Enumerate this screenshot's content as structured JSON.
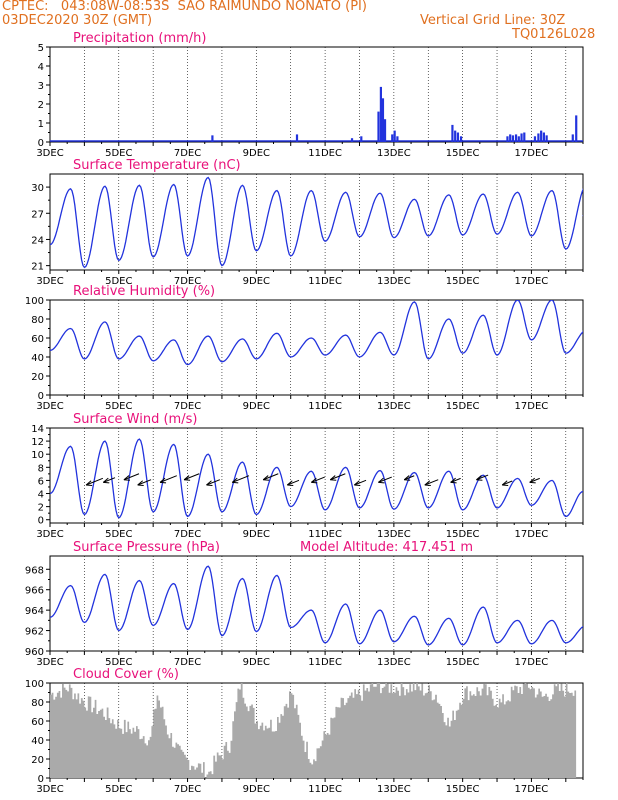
{
  "header": {
    "line1_left": "CPTEC:   043:08W-08:53S  SAO RAIMUNDO NONATO (PI)",
    "line2_left": "03DEC2020 30Z (GMT)",
    "line2_right": "Vertical Grid Line: 30Z",
    "line3_right": "TQ0126L028"
  },
  "colors": {
    "header": "#e07020",
    "title": "#e8117a",
    "line": "#2233dd",
    "bar": "#2233dd",
    "cloud": "#aaaaaa"
  },
  "x_ticks": [
    "3DEC",
    "5DEC",
    "7DEC",
    "9DEC",
    "11DEC",
    "13DEC",
    "15DEC",
    "17DEC"
  ],
  "chart_data": [
    {
      "type": "bar",
      "title": "Precipitation (mm/h)",
      "ylim": [
        0,
        5
      ],
      "yticks": [
        0,
        1,
        2,
        3,
        4,
        5
      ],
      "days": 15.5,
      "events": [
        {
          "day": 7.72,
          "value": 0.35
        },
        {
          "day": 10.18,
          "value": 0.4
        },
        {
          "day": 11.78,
          "value": 0.2
        },
        {
          "day": 12.05,
          "value": 0.3
        },
        {
          "day": 12.55,
          "value": 1.6
        },
        {
          "day": 12.62,
          "value": 2.9
        },
        {
          "day": 12.68,
          "value": 2.3
        },
        {
          "day": 12.74,
          "value": 1.2
        },
        {
          "day": 12.95,
          "value": 0.4
        },
        {
          "day": 13.02,
          "value": 0.6
        },
        {
          "day": 13.1,
          "value": 0.3
        },
        {
          "day": 14.7,
          "value": 0.9
        },
        {
          "day": 14.78,
          "value": 0.6
        },
        {
          "day": 14.86,
          "value": 0.5
        },
        {
          "day": 14.95,
          "value": 0.3
        },
        {
          "day": 16.3,
          "value": 0.3
        },
        {
          "day": 16.38,
          "value": 0.4
        },
        {
          "day": 16.46,
          "value": 0.35
        },
        {
          "day": 16.55,
          "value": 0.4
        },
        {
          "day": 16.63,
          "value": 0.3
        },
        {
          "day": 16.71,
          "value": 0.45
        },
        {
          "day": 16.79,
          "value": 0.5
        },
        {
          "day": 17.1,
          "value": 0.3
        },
        {
          "day": 17.2,
          "value": 0.45
        },
        {
          "day": 17.28,
          "value": 0.6
        },
        {
          "day": 17.36,
          "value": 0.5
        },
        {
          "day": 17.44,
          "value": 0.35
        },
        {
          "day": 18.2,
          "value": 0.4
        },
        {
          "day": 18.3,
          "value": 1.4
        }
      ]
    },
    {
      "type": "line",
      "title": "Surface Temperature (nC)",
      "ylim": [
        20.5,
        31.5
      ],
      "yticks": [
        21,
        24,
        27,
        30
      ],
      "maxima": [
        null,
        29.8,
        30.1,
        30.2,
        30.3,
        31.1,
        30.2,
        29.6,
        29.6,
        29.4,
        29.3,
        28.6,
        29.1,
        29.2,
        29.4,
        29.6,
        30.2
      ],
      "minima": [
        23.4,
        20.8,
        21.6,
        22.0,
        22.1,
        21.0,
        22.7,
        22.1,
        23.8,
        24.3,
        24.2,
        24.4,
        24.5,
        24.6,
        24.4,
        22.9,
        22.6
      ],
      "last": 26.8
    },
    {
      "type": "line",
      "title": "Relative Humidity (%)",
      "ylim": [
        0,
        100
      ],
      "yticks": [
        0,
        20,
        40,
        60,
        80,
        100
      ],
      "maxima": [
        79,
        70,
        77,
        62,
        58,
        62,
        59,
        65,
        60,
        63,
        66,
        98,
        80,
        84,
        100,
        100,
        68
      ],
      "minima": [
        47,
        38,
        38,
        36,
        32,
        35,
        38,
        40,
        42,
        40,
        42,
        38,
        44,
        42,
        58,
        44,
        46
      ],
      "last": 68
    },
    {
      "type": "line",
      "title": "Surface Wind (m/s)",
      "ylim": [
        -0.5,
        14
      ],
      "yticks": [
        0,
        2,
        4,
        6,
        8,
        10,
        12,
        14
      ],
      "maxima": [
        8.5,
        11.2,
        12,
        12.3,
        11.5,
        10,
        8.8,
        8,
        7.4,
        8,
        7.5,
        7.2,
        7.4,
        6.8,
        6.3,
        6
      ],
      "minima": [
        4,
        0.8,
        0.3,
        1.2,
        0.5,
        1.2,
        0.8,
        2,
        1.5,
        1.8,
        1.6,
        1.8,
        1.5,
        1.8,
        2.2,
        0.5
      ],
      "last": 4.3,
      "arrows_days": [
        4.05,
        4.55,
        5.15,
        5.55,
        6.2,
        6.9,
        7.55,
        8.3,
        9.2,
        9.9,
        10.6,
        11.15,
        11.85,
        12.55,
        13.3,
        13.9,
        14.65,
        15.4,
        16.15,
        16.95
      ],
      "arrows_len": [
        1.0,
        0.7,
        0.9,
        0.8,
        1.0,
        0.9,
        0.8,
        1.0,
        0.9,
        0.7,
        0.8,
        0.9,
        0.7,
        0.8,
        0.6,
        0.8,
        0.6,
        0.7,
        0.6,
        0.6
      ]
    },
    {
      "type": "line",
      "title": "Surface Pressure (hPa)",
      "annotation": "Model Altitude: 417.451 m",
      "ylim": [
        960,
        969.3
      ],
      "yticks": [
        960,
        962,
        964,
        966,
        968
      ],
      "maxima": [
        966.2,
        966.4,
        967.5,
        966.9,
        966.6,
        968.3,
        967.1,
        967.4,
        964.0,
        964.6,
        964.0,
        963.4,
        963.2,
        964.3,
        963.0,
        963.0,
        962.5
      ],
      "minima": [
        963.3,
        962.8,
        962.0,
        962.5,
        962.1,
        961.5,
        961.9,
        962.3,
        960.8,
        960.7,
        960.9,
        960.6,
        960.6,
        960.8,
        960.7,
        960.8,
        960.6
      ],
      "last": 960.3
    },
    {
      "type": "area",
      "title": "Cloud Cover (%)",
      "ylim": [
        0,
        100
      ],
      "yticks": [
        0,
        20,
        40,
        60,
        80,
        100
      ],
      "segments": [
        [
          3.0,
          88
        ],
        [
          3.5,
          95
        ],
        [
          4.0,
          80
        ],
        [
          4.5,
          70
        ],
        [
          5.0,
          55
        ],
        [
          5.5,
          50
        ],
        [
          5.9,
          40
        ],
        [
          6.1,
          88
        ],
        [
          6.4,
          50
        ],
        [
          6.8,
          22
        ],
        [
          7.3,
          12
        ],
        [
          7.6,
          5
        ],
        [
          7.8,
          18
        ],
        [
          8.2,
          35
        ],
        [
          8.5,
          98
        ],
        [
          9.0,
          60
        ],
        [
          9.5,
          55
        ],
        [
          10.0,
          90
        ],
        [
          10.4,
          35
        ],
        [
          10.6,
          20
        ],
        [
          11.0,
          45
        ],
        [
          11.4,
          75
        ],
        [
          12.0,
          88
        ],
        [
          12.5,
          98
        ],
        [
          13.0,
          95
        ],
        [
          13.6,
          96
        ],
        [
          14.2,
          88
        ],
        [
          14.6,
          55
        ],
        [
          15.0,
          90
        ],
        [
          15.6,
          92
        ],
        [
          16.1,
          78
        ],
        [
          16.5,
          92
        ],
        [
          16.9,
          98
        ],
        [
          17.3,
          85
        ],
        [
          17.7,
          92
        ],
        [
          18.3,
          95
        ]
      ]
    }
  ]
}
